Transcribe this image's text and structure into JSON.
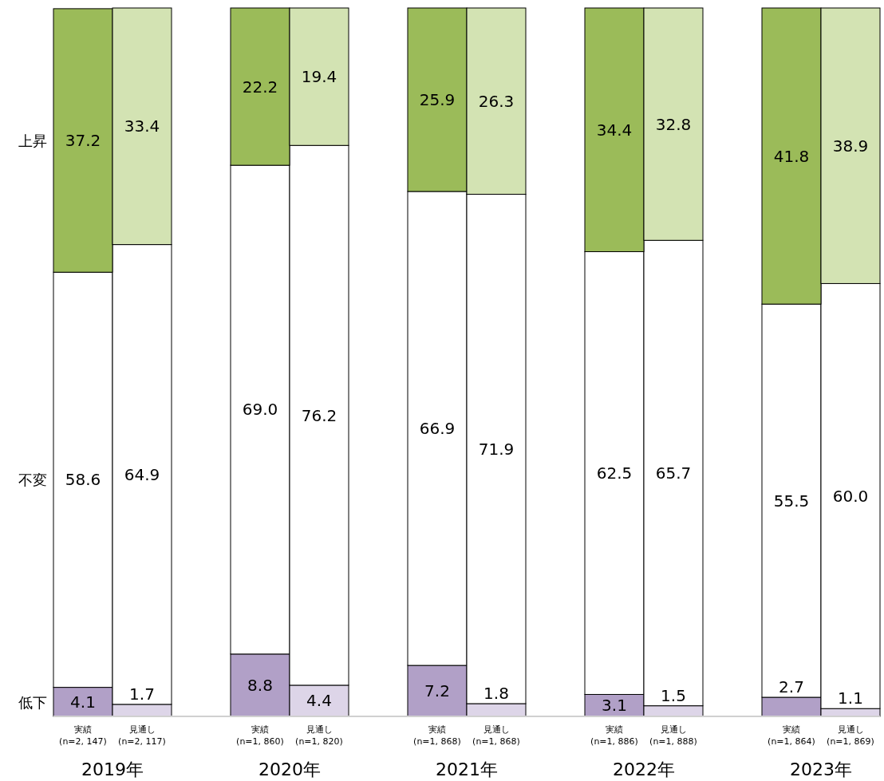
{
  "chart_data": {
    "type": "bar",
    "stacked": true,
    "data_labels": true,
    "legend": false,
    "categories": [
      "実績\n(n=2, 147)",
      "見通し\n(n=2, 117)",
      "実績\n(n=1, 860)",
      "見通し\n(n=1, 820)",
      "実績\n(n=1, 868)",
      "見通し\n(n=1, 868)",
      "実績\n(n=1, 886)",
      "見通し\n(n=1, 888)",
      "実績\n(n=1, 864)",
      "見通し\n(n=1, 869)"
    ],
    "series": [
      {
        "name": "低下",
        "colors": [
          "#b1a0c7",
          "#ddd5e8",
          "#b1a0c7",
          "#ddd5e8",
          "#b1a0c7",
          "#ddd5e8",
          "#b1a0c7",
          "#ddd5e8",
          "#b1a0c7",
          "#ddd5e8"
        ],
        "values": [
          4.1,
          1.7,
          8.8,
          4.4,
          7.2,
          1.8,
          3.1,
          1.5,
          2.7,
          1.1
        ],
        "value_labels": [
          "4.1",
          "1.7",
          "8.8",
          "4.4",
          "7.2",
          "1.8",
          "3.1",
          "1.5",
          "2.7",
          "1.1"
        ]
      },
      {
        "name": "不変",
        "color": "#ffffff",
        "values": [
          58.6,
          64.9,
          69.0,
          76.2,
          66.9,
          71.9,
          62.5,
          65.7,
          55.5,
          60.0
        ],
        "value_labels": [
          "58.6",
          "64.9",
          "69.0",
          "76.2",
          "66.9",
          "71.9",
          "62.5",
          "65.7",
          "55.5",
          "60.0"
        ]
      },
      {
        "name": "上昇",
        "colors": [
          "#9bbb59",
          "#d3e3b3",
          "#9bbb59",
          "#d3e3b3",
          "#9bbb59",
          "#d3e3b3",
          "#9bbb59",
          "#d3e3b3",
          "#9bbb59",
          "#d3e3b3"
        ],
        "values": [
          37.2,
          33.4,
          22.2,
          19.4,
          25.9,
          26.3,
          34.4,
          32.8,
          41.8,
          38.9
        ],
        "value_labels": [
          "37.2",
          "33.4",
          "22.2",
          "19.4",
          "25.9",
          "26.3",
          "34.4",
          "32.8",
          "41.8",
          "38.9"
        ]
      }
    ],
    "annotations": [
      "2019年",
      "2020年",
      "2021年",
      "2022年",
      "2023年"
    ]
  }
}
